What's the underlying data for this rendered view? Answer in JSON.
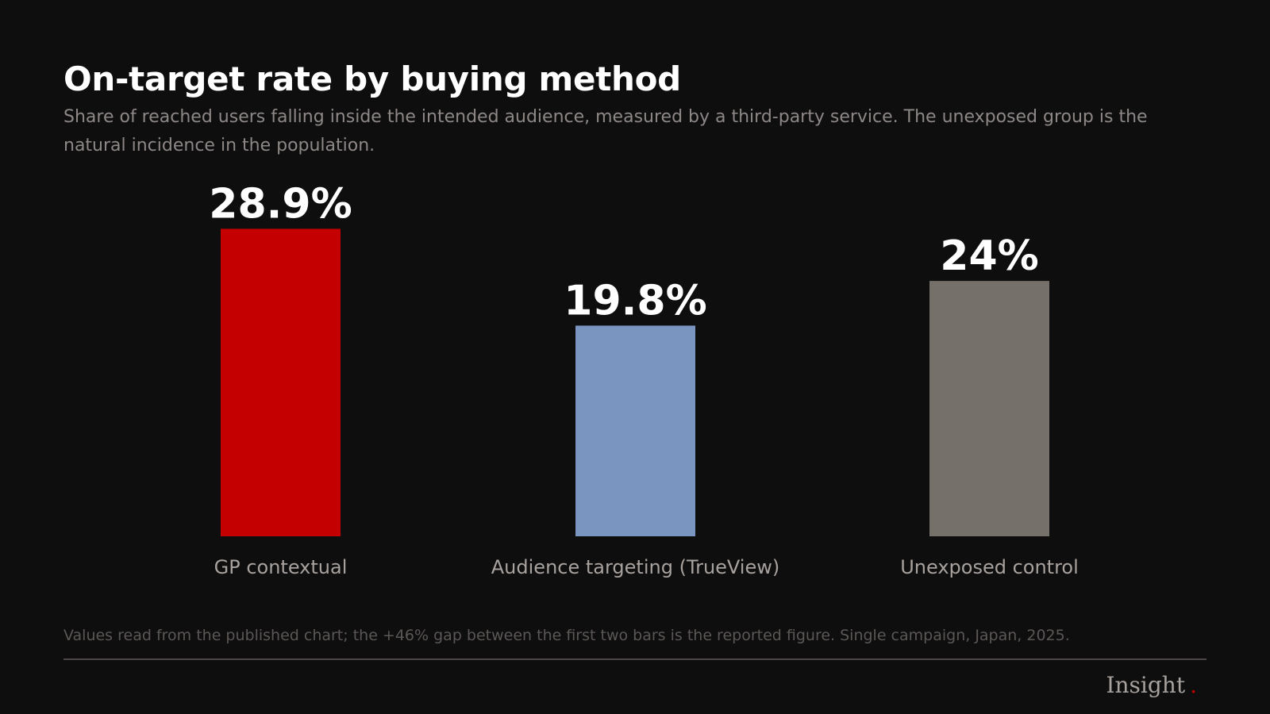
{
  "chart_data": {
    "type": "bar",
    "title": "On-target rate by buying method",
    "subtitle": "Share of reached users falling inside the intended audience, measured by a third-party service. The unexposed group is the natural incidence in the population.",
    "categories": [
      "GP contextual",
      "Audience targeting (TrueView)",
      "Unexposed control"
    ],
    "values": [
      28.9,
      19.8,
      24
    ],
    "value_labels": [
      "28.9%",
      "19.8%",
      "24%"
    ],
    "colors": [
      "#c40000",
      "#7a96c0",
      "#76706b"
    ],
    "ylim": [
      0,
      34
    ],
    "grid": false,
    "legend": "none"
  },
  "footnote": "Values read from the published chart; the +46% gap between the first two bars is the reported figure. Single campaign, Japan, 2025.",
  "brand": {
    "name": "Insight",
    "dot": ".",
    "accent": "#c40000"
  },
  "theme": {
    "background": "#0f0e0f",
    "text": "#ffffff",
    "muted_text": "#8d8886"
  }
}
